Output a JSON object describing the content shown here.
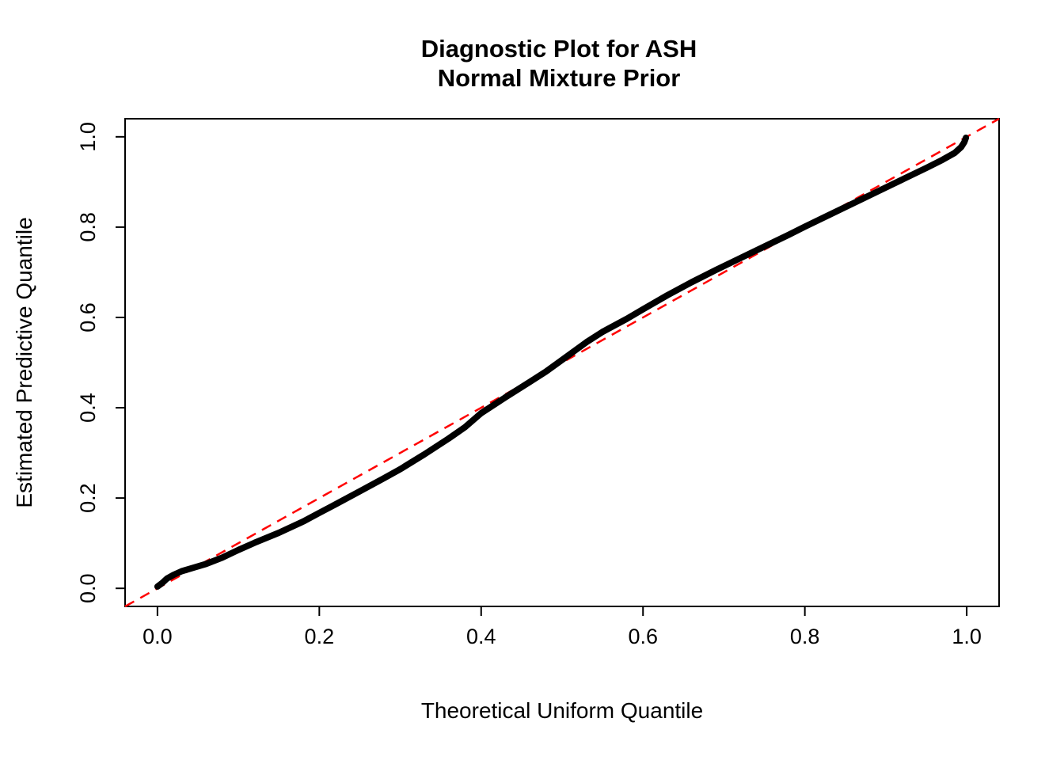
{
  "title": {
    "line1": "Diagnostic Plot for ASH",
    "line2": "Normal Mixture Prior"
  },
  "axes": {
    "xlabel": "Theoretical Uniform Quantile",
    "ylabel": "Estimated Predictive Quantile"
  },
  "chart_data": {
    "type": "line",
    "title": "Diagnostic Plot for ASH / Normal Mixture Prior",
    "xlabel": "Theoretical Uniform Quantile",
    "ylabel": "Estimated Predictive Quantile",
    "xlim": [
      -0.04,
      1.04
    ],
    "ylim": [
      -0.04,
      1.04
    ],
    "x_ticks": [
      0.0,
      0.2,
      0.4,
      0.6,
      0.8,
      1.0
    ],
    "y_ticks": [
      0.0,
      0.2,
      0.4,
      0.6,
      0.8,
      1.0
    ],
    "x_tick_labels": [
      "0.0",
      "0.2",
      "0.4",
      "0.6",
      "0.8",
      "1.0"
    ],
    "y_tick_labels": [
      "0.0",
      "0.2",
      "0.4",
      "0.6",
      "0.8",
      "1.0"
    ],
    "grid": false,
    "legend": "none",
    "series": [
      {
        "name": "estimated-predictive-quantile-curve",
        "color": "#000000",
        "style": "solid",
        "width": 8,
        "points": [
          [
            0.0,
            0.004
          ],
          [
            0.006,
            0.012
          ],
          [
            0.012,
            0.022
          ],
          [
            0.02,
            0.03
          ],
          [
            0.03,
            0.038
          ],
          [
            0.045,
            0.046
          ],
          [
            0.06,
            0.054
          ],
          [
            0.08,
            0.068
          ],
          [
            0.1,
            0.085
          ],
          [
            0.12,
            0.101
          ],
          [
            0.15,
            0.123
          ],
          [
            0.18,
            0.148
          ],
          [
            0.2,
            0.167
          ],
          [
            0.22,
            0.186
          ],
          [
            0.25,
            0.215
          ],
          [
            0.28,
            0.244
          ],
          [
            0.3,
            0.264
          ],
          [
            0.33,
            0.297
          ],
          [
            0.36,
            0.332
          ],
          [
            0.38,
            0.357
          ],
          [
            0.4,
            0.388
          ],
          [
            0.43,
            0.423
          ],
          [
            0.46,
            0.457
          ],
          [
            0.48,
            0.48
          ],
          [
            0.5,
            0.506
          ],
          [
            0.53,
            0.545
          ],
          [
            0.55,
            0.568
          ],
          [
            0.58,
            0.597
          ],
          [
            0.6,
            0.618
          ],
          [
            0.63,
            0.649
          ],
          [
            0.66,
            0.678
          ],
          [
            0.69,
            0.705
          ],
          [
            0.72,
            0.731
          ],
          [
            0.75,
            0.757
          ],
          [
            0.78,
            0.783
          ],
          [
            0.8,
            0.801
          ],
          [
            0.83,
            0.827
          ],
          [
            0.86,
            0.853
          ],
          [
            0.89,
            0.879
          ],
          [
            0.92,
            0.905
          ],
          [
            0.95,
            0.931
          ],
          [
            0.97,
            0.949
          ],
          [
            0.985,
            0.964
          ],
          [
            0.993,
            0.977
          ],
          [
            0.997,
            0.988
          ],
          [
            0.999,
            0.998
          ]
        ]
      },
      {
        "name": "identity-reference-line",
        "color": "#FF0000",
        "style": "dashed",
        "width": 2.5,
        "points": [
          [
            -0.04,
            -0.04
          ],
          [
            1.04,
            1.04
          ]
        ]
      }
    ]
  },
  "colors": {
    "curve": "#000000",
    "reference_line": "#FF0000",
    "axis": "#000000",
    "background": "#FFFFFF"
  }
}
